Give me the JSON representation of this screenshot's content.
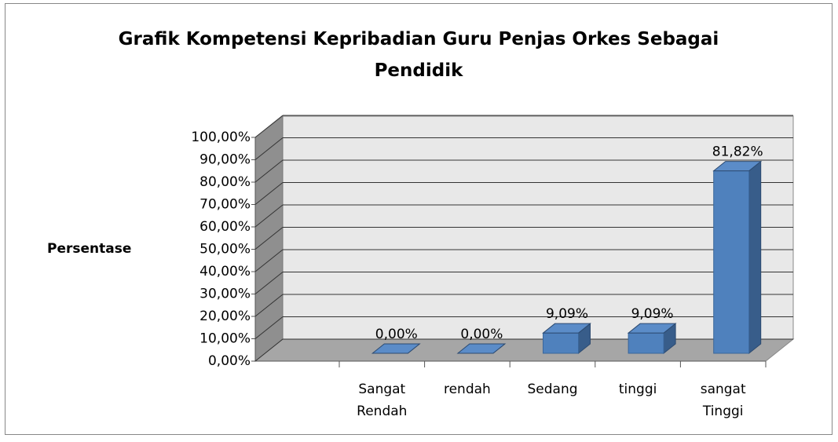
{
  "chart_data": {
    "type": "bar3d",
    "title": "Grafik Kompetensi Kepribadian Guru Penjas Orkes Sebagai Pendidik",
    "y_label": "Persentase",
    "categories": [
      "Sangat Rendah",
      "rendah",
      "Sedang",
      "tinggi",
      "sangat Tinggi"
    ],
    "values": [
      0,
      0,
      9.09,
      9.09,
      81.82
    ],
    "value_labels": [
      "0,00%",
      "0,00%",
      "9,09%",
      "9,09%",
      "81,82%"
    ],
    "color": "#4f81bd",
    "ylim": [
      0,
      100
    ],
    "yticks": [
      {
        "value": 0,
        "label": "0,00%"
      },
      {
        "value": 10,
        "label": "10,00%"
      },
      {
        "value": 20,
        "label": "20,00%"
      },
      {
        "value": 30,
        "label": "30,00%"
      },
      {
        "value": 40,
        "label": "40,00%"
      },
      {
        "value": 50,
        "label": "50,00%"
      },
      {
        "value": 60,
        "label": "60,00%"
      },
      {
        "value": 70,
        "label": "70,00%"
      },
      {
        "value": 80,
        "label": "80,00%"
      },
      {
        "value": 90,
        "label": "90,00%"
      },
      {
        "value": 100,
        "label": "100,00%"
      }
    ],
    "grid": true
  }
}
